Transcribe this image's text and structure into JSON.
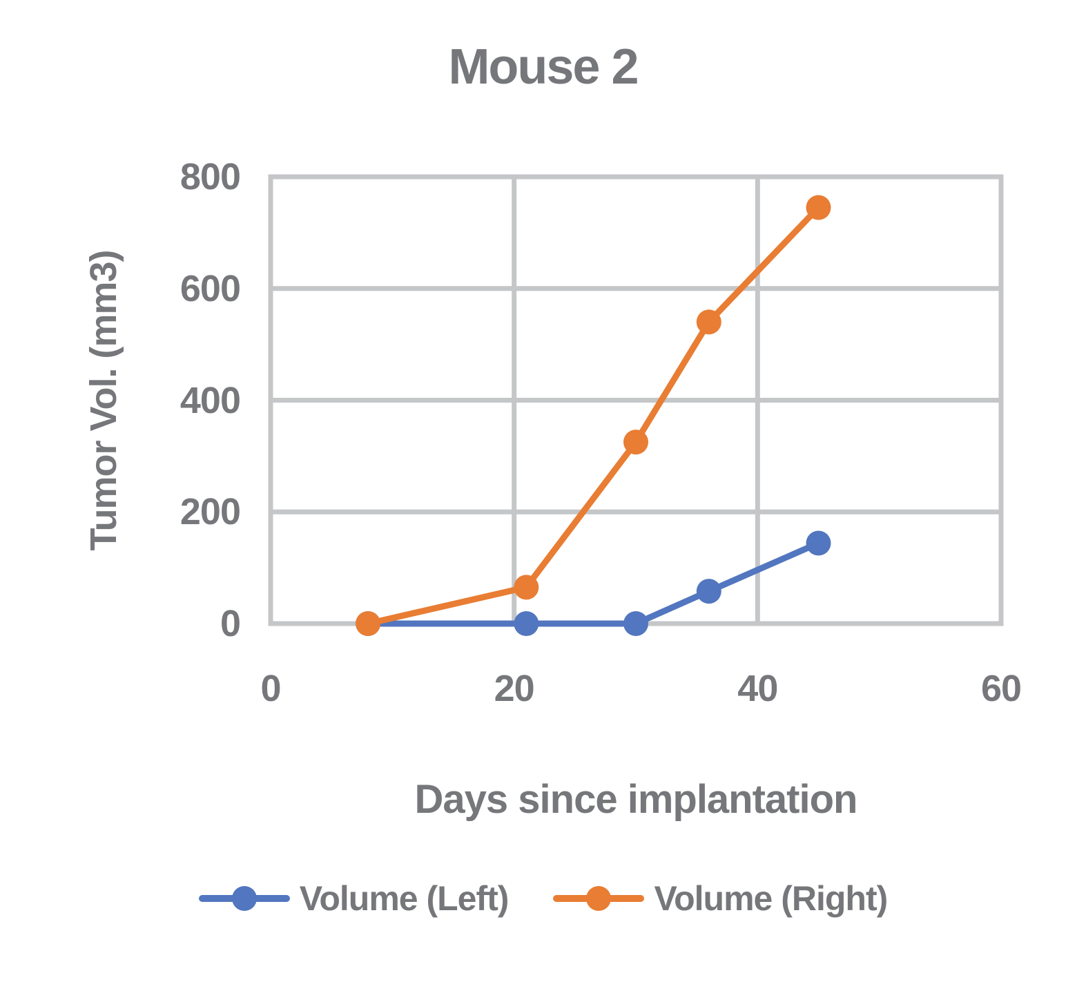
{
  "chart_data": {
    "type": "line",
    "title": "Mouse 2",
    "xlabel": "Days since implantation",
    "ylabel": "Tumor Vol. (mm3)",
    "x": [
      8,
      21,
      30,
      36,
      45
    ],
    "series": [
      {
        "name": "Volume (Left)",
        "color": "#5276BF",
        "values": [
          0,
          0,
          0,
          58,
          144
        ]
      },
      {
        "name": "Volume (Right)",
        "color": "#E87D33",
        "values": [
          0,
          65,
          325,
          540,
          745
        ]
      }
    ],
    "xlim": [
      0,
      60
    ],
    "ylim": [
      0,
      800
    ],
    "x_ticks": [
      0,
      20,
      40,
      60
    ],
    "y_ticks": [
      0,
      200,
      400,
      600,
      800
    ],
    "grid": true,
    "legend_position": "bottom",
    "marker": "circle",
    "grid_color": "#C4C6C8",
    "text_color": "#76777A"
  }
}
